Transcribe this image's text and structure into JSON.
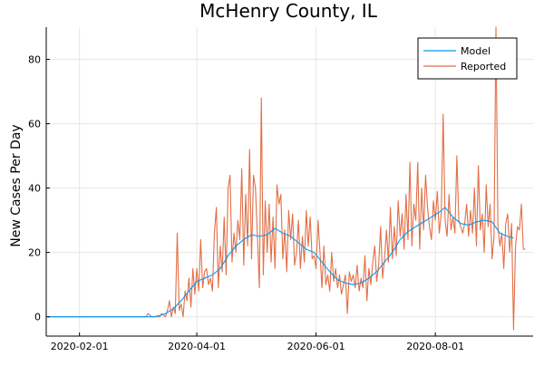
{
  "chart_data": {
    "type": "line",
    "title": "McHenry County, IL",
    "xlabel": "",
    "ylabel": "New Cases Per Day",
    "xlim": [
      "2020-01-15",
      "2020-09-20"
    ],
    "ylim": [
      -6,
      90
    ],
    "grid": true,
    "legend_position": "top-right",
    "x_ticks": [
      "2020-02-01",
      "2020-04-01",
      "2020-06-01",
      "2020-08-01"
    ],
    "y_ticks": [
      0,
      20,
      40,
      60,
      80
    ],
    "series": [
      {
        "name": "Model",
        "color": "#009AFA",
        "points": [
          [
            "2020-01-16",
            0
          ],
          [
            "2020-03-10",
            0
          ],
          [
            "2020-03-13",
            0.4
          ],
          [
            "2020-03-16",
            1
          ],
          [
            "2020-03-20",
            2.5
          ],
          [
            "2020-03-24",
            5
          ],
          [
            "2020-03-28",
            8
          ],
          [
            "2020-04-01",
            11
          ],
          [
            "2020-04-05",
            12
          ],
          [
            "2020-04-09",
            13
          ],
          [
            "2020-04-13",
            15
          ],
          [
            "2020-04-17",
            19
          ],
          [
            "2020-04-21",
            22
          ],
          [
            "2020-04-25",
            24
          ],
          [
            "2020-04-29",
            25.5
          ],
          [
            "2020-05-03",
            25
          ],
          [
            "2020-05-07",
            25.5
          ],
          [
            "2020-05-11",
            27.5
          ],
          [
            "2020-05-15",
            26
          ],
          [
            "2020-05-19",
            25
          ],
          [
            "2020-05-23",
            23
          ],
          [
            "2020-05-27",
            21
          ],
          [
            "2020-05-31",
            20
          ],
          [
            "2020-06-04",
            17
          ],
          [
            "2020-06-08",
            14
          ],
          [
            "2020-06-12",
            11.5
          ],
          [
            "2020-06-16",
            10.5
          ],
          [
            "2020-06-20",
            10
          ],
          [
            "2020-06-24",
            10.5
          ],
          [
            "2020-06-28",
            12
          ],
          [
            "2020-07-02",
            14
          ],
          [
            "2020-07-06",
            17
          ],
          [
            "2020-07-10",
            20
          ],
          [
            "2020-07-14",
            24
          ],
          [
            "2020-07-18",
            26.5
          ],
          [
            "2020-07-22",
            28
          ],
          [
            "2020-07-26",
            29.5
          ],
          [
            "2020-07-30",
            31
          ],
          [
            "2020-08-03",
            32.5
          ],
          [
            "2020-08-06",
            34
          ],
          [
            "2020-08-10",
            31
          ],
          [
            "2020-08-14",
            29
          ],
          [
            "2020-08-18",
            28.5
          ],
          [
            "2020-08-22",
            29.5
          ],
          [
            "2020-08-26",
            30
          ],
          [
            "2020-08-30",
            29.5
          ],
          [
            "2020-09-03",
            26
          ],
          [
            "2020-09-07",
            25
          ],
          [
            "2020-09-10",
            24.5
          ]
        ]
      },
      {
        "name": "Reported",
        "color": "#E26F46",
        "points": [
          [
            "2020-01-16",
            0
          ],
          [
            "2020-03-06",
            0
          ],
          [
            "2020-03-07",
            1
          ],
          [
            "2020-03-09",
            0
          ],
          [
            "2020-03-13",
            0
          ],
          [
            "2020-03-14",
            1
          ],
          [
            "2020-03-16",
            0
          ],
          [
            "2020-03-17",
            2
          ],
          [
            "2020-03-18",
            5
          ],
          [
            "2020-03-19",
            0
          ],
          [
            "2020-03-20",
            3
          ],
          [
            "2020-03-21",
            1
          ],
          [
            "2020-03-22",
            26
          ],
          [
            "2020-03-23",
            2
          ],
          [
            "2020-03-24",
            4
          ],
          [
            "2020-03-25",
            0
          ],
          [
            "2020-03-26",
            8
          ],
          [
            "2020-03-27",
            5
          ],
          [
            "2020-03-28",
            12
          ],
          [
            "2020-03-29",
            3
          ],
          [
            "2020-03-30",
            15
          ],
          [
            "2020-03-31",
            7
          ],
          [
            "2020-04-01",
            15
          ],
          [
            "2020-04-02",
            8
          ],
          [
            "2020-04-03",
            24
          ],
          [
            "2020-04-04",
            9
          ],
          [
            "2020-04-05",
            14
          ],
          [
            "2020-04-06",
            15
          ],
          [
            "2020-04-07",
            10
          ],
          [
            "2020-04-08",
            12
          ],
          [
            "2020-04-09",
            8
          ],
          [
            "2020-04-10",
            26
          ],
          [
            "2020-04-11",
            34
          ],
          [
            "2020-04-12",
            9
          ],
          [
            "2020-04-13",
            22
          ],
          [
            "2020-04-14",
            14
          ],
          [
            "2020-04-15",
            31
          ],
          [
            "2020-04-16",
            13
          ],
          [
            "2020-04-17",
            40
          ],
          [
            "2020-04-18",
            44
          ],
          [
            "2020-04-19",
            17
          ],
          [
            "2020-04-20",
            26
          ],
          [
            "2020-04-21",
            20
          ],
          [
            "2020-04-22",
            30
          ],
          [
            "2020-04-23",
            24
          ],
          [
            "2020-04-24",
            46
          ],
          [
            "2020-04-25",
            16
          ],
          [
            "2020-04-26",
            38
          ],
          [
            "2020-04-27",
            22
          ],
          [
            "2020-04-28",
            52
          ],
          [
            "2020-04-29",
            18
          ],
          [
            "2020-04-30",
            44
          ],
          [
            "2020-05-01",
            40
          ],
          [
            "2020-05-02",
            25
          ],
          [
            "2020-05-03",
            9
          ],
          [
            "2020-05-04",
            68
          ],
          [
            "2020-05-05",
            13
          ],
          [
            "2020-05-06",
            36
          ],
          [
            "2020-05-07",
            20
          ],
          [
            "2020-05-08",
            35
          ],
          [
            "2020-05-09",
            17
          ],
          [
            "2020-05-10",
            31
          ],
          [
            "2020-05-11",
            15
          ],
          [
            "2020-05-12",
            41
          ],
          [
            "2020-05-13",
            35
          ],
          [
            "2020-05-14",
            38
          ],
          [
            "2020-05-15",
            18
          ],
          [
            "2020-05-16",
            27
          ],
          [
            "2020-05-17",
            14
          ],
          [
            "2020-05-18",
            33
          ],
          [
            "2020-05-19",
            24
          ],
          [
            "2020-05-20",
            32
          ],
          [
            "2020-05-21",
            16
          ],
          [
            "2020-05-22",
            20
          ],
          [
            "2020-05-23",
            30
          ],
          [
            "2020-05-24",
            15
          ],
          [
            "2020-05-25",
            25
          ],
          [
            "2020-05-26",
            17
          ],
          [
            "2020-05-27",
            33
          ],
          [
            "2020-05-28",
            22
          ],
          [
            "2020-05-29",
            31
          ],
          [
            "2020-05-30",
            18
          ],
          [
            "2020-05-31",
            19
          ],
          [
            "2020-06-01",
            15
          ],
          [
            "2020-06-02",
            30
          ],
          [
            "2020-06-03",
            20
          ],
          [
            "2020-06-04",
            9
          ],
          [
            "2020-06-05",
            22
          ],
          [
            "2020-06-06",
            10
          ],
          [
            "2020-06-07",
            13
          ],
          [
            "2020-06-08",
            8
          ],
          [
            "2020-06-09",
            20
          ],
          [
            "2020-06-10",
            11
          ],
          [
            "2020-06-11",
            15
          ],
          [
            "2020-06-12",
            9
          ],
          [
            "2020-06-13",
            13
          ],
          [
            "2020-06-14",
            7
          ],
          [
            "2020-06-15",
            10
          ],
          [
            "2020-06-16",
            13
          ],
          [
            "2020-06-17",
            1
          ],
          [
            "2020-06-18",
            14
          ],
          [
            "2020-06-19",
            11
          ],
          [
            "2020-06-20",
            13
          ],
          [
            "2020-06-21",
            9
          ],
          [
            "2020-06-22",
            16
          ],
          [
            "2020-06-23",
            8
          ],
          [
            "2020-06-24",
            12
          ],
          [
            "2020-06-25",
            9
          ],
          [
            "2020-06-26",
            19
          ],
          [
            "2020-06-27",
            5
          ],
          [
            "2020-06-28",
            15
          ],
          [
            "2020-06-29",
            10
          ],
          [
            "2020-06-30",
            17
          ],
          [
            "2020-07-01",
            22
          ],
          [
            "2020-07-02",
            11
          ],
          [
            "2020-07-03",
            16
          ],
          [
            "2020-07-04",
            28
          ],
          [
            "2020-07-05",
            12
          ],
          [
            "2020-07-06",
            18
          ],
          [
            "2020-07-07",
            27
          ],
          [
            "2020-07-08",
            17
          ],
          [
            "2020-07-09",
            34
          ],
          [
            "2020-07-10",
            18
          ],
          [
            "2020-07-11",
            28
          ],
          [
            "2020-07-12",
            19
          ],
          [
            "2020-07-13",
            36
          ],
          [
            "2020-07-14",
            25
          ],
          [
            "2020-07-15",
            32
          ],
          [
            "2020-07-16",
            21
          ],
          [
            "2020-07-17",
            38
          ],
          [
            "2020-07-18",
            24
          ],
          [
            "2020-07-19",
            48
          ],
          [
            "2020-07-20",
            22
          ],
          [
            "2020-07-21",
            35
          ],
          [
            "2020-07-22",
            30
          ],
          [
            "2020-07-23",
            48
          ],
          [
            "2020-07-24",
            21
          ],
          [
            "2020-07-25",
            40
          ],
          [
            "2020-07-26",
            27
          ],
          [
            "2020-07-27",
            44
          ],
          [
            "2020-07-28",
            34
          ],
          [
            "2020-07-29",
            28
          ],
          [
            "2020-07-30",
            24
          ],
          [
            "2020-07-31",
            36
          ],
          [
            "2020-08-01",
            30
          ],
          [
            "2020-08-02",
            39
          ],
          [
            "2020-08-03",
            26
          ],
          [
            "2020-08-04",
            32
          ],
          [
            "2020-08-05",
            63
          ],
          [
            "2020-08-06",
            30
          ],
          [
            "2020-08-07",
            25
          ],
          [
            "2020-08-08",
            38
          ],
          [
            "2020-08-09",
            27
          ],
          [
            "2020-08-10",
            31
          ],
          [
            "2020-08-11",
            26
          ],
          [
            "2020-08-12",
            50
          ],
          [
            "2020-08-13",
            30
          ],
          [
            "2020-08-14",
            28
          ],
          [
            "2020-08-15",
            26
          ],
          [
            "2020-08-16",
            29
          ],
          [
            "2020-08-17",
            35
          ],
          [
            "2020-08-18",
            25
          ],
          [
            "2020-08-19",
            33
          ],
          [
            "2020-08-20",
            26
          ],
          [
            "2020-08-21",
            40
          ],
          [
            "2020-08-22",
            22
          ],
          [
            "2020-08-23",
            47
          ],
          [
            "2020-08-24",
            27
          ],
          [
            "2020-08-25",
            32
          ],
          [
            "2020-08-26",
            20
          ],
          [
            "2020-08-27",
            41
          ],
          [
            "2020-08-28",
            28
          ],
          [
            "2020-08-29",
            35
          ],
          [
            "2020-08-30",
            18
          ],
          [
            "2020-08-31",
            25
          ],
          [
            "2020-09-01",
            90
          ],
          [
            "2020-09-02",
            28
          ],
          [
            "2020-09-03",
            22
          ],
          [
            "2020-09-04",
            26
          ],
          [
            "2020-09-05",
            15
          ],
          [
            "2020-09-06",
            29
          ],
          [
            "2020-09-07",
            32
          ],
          [
            "2020-09-08",
            20
          ],
          [
            "2020-09-09",
            29
          ],
          [
            "2020-09-10",
            -4
          ],
          [
            "2020-09-11",
            22
          ],
          [
            "2020-09-12",
            28
          ],
          [
            "2020-09-13",
            27
          ],
          [
            "2020-09-14",
            35
          ],
          [
            "2020-09-15",
            21
          ],
          [
            "2020-09-16",
            21
          ]
        ]
      }
    ]
  }
}
